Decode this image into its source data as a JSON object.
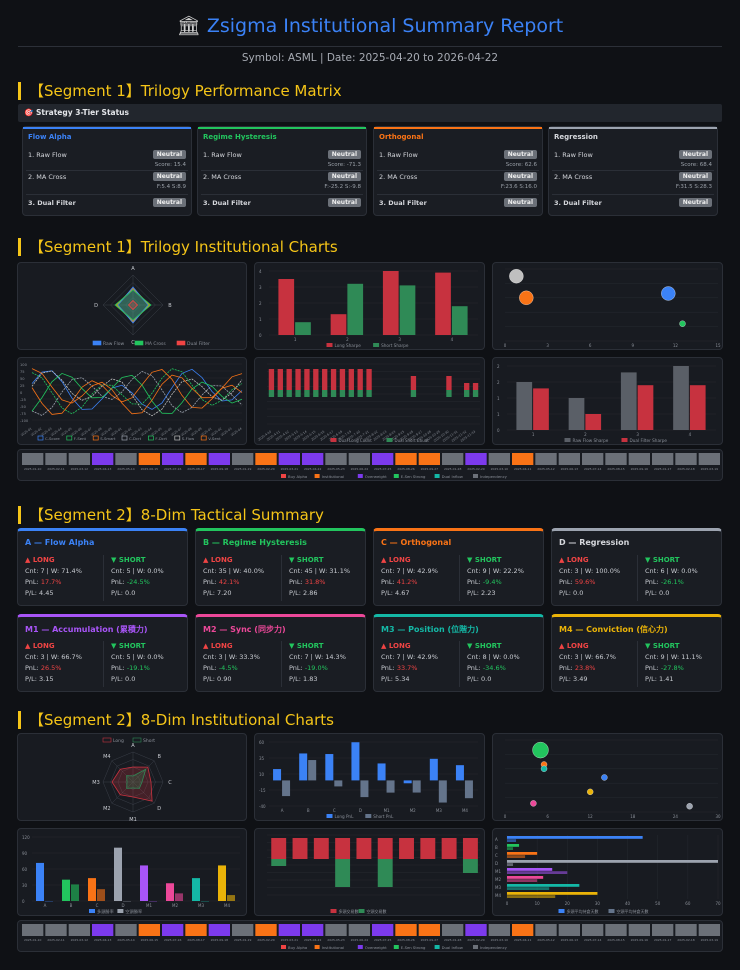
{
  "header": {
    "title": "Zsigma Institutional Summary Report",
    "title_icon": "bank-icon",
    "subtitle": "Symbol: ASML | Date: 2025-04-20 to 2026-04-22"
  },
  "sections": {
    "s1_matrix": "【Segment 1】Trilogy Performance Matrix",
    "s1_charts": "【Segment 1】Trilogy Institutional Charts",
    "s2_summary": "【Segment 2】8-Dim Tactical Summary",
    "s2_charts": "【Segment 2】8-Dim Institutional Charts"
  },
  "strategy_status": {
    "label": "Strategy 3-Tier Status",
    "icon": "target-icon"
  },
  "trilogy": [
    {
      "name": "Flow Alpha",
      "color": "#3b82f6",
      "rows": [
        "1. Raw Flow",
        "2. MA Cross",
        "3. Dual Filter"
      ],
      "badges": [
        "Neutral",
        "Neutral",
        "Neutral"
      ],
      "scores": [
        "Score: 15.4",
        "F:5.4 S:8.9"
      ]
    },
    {
      "name": "Regime Hysteresis",
      "color": "#22c55e",
      "rows": [
        "1. Raw Flow",
        "2. MA Cross",
        "3. Dual Filter"
      ],
      "badges": [
        "Neutral",
        "Neutral",
        "Neutral"
      ],
      "scores": [
        "Score: -71.3",
        "F:-25.2 S:-9.8"
      ]
    },
    {
      "name": "Orthogonal",
      "color": "#f97316",
      "rows": [
        "1. Raw Flow",
        "2. MA Cross",
        "3. Dual Filter"
      ],
      "badges": [
        "Neutral",
        "Neutral",
        "Neutral"
      ],
      "scores": [
        "Score: 62.6",
        "F:23.6 S:16.0"
      ]
    },
    {
      "name": "Regression",
      "color": "#9ca3af",
      "rows": [
        "1. Raw Flow",
        "2. MA Cross",
        "3. Dual Filter"
      ],
      "badges": [
        "Neutral",
        "Neutral",
        "Neutral"
      ],
      "scores": [
        "Score: 68.4",
        "F:31.5 S:28.3"
      ]
    }
  ],
  "dims": [
    {
      "name": "A — Flow Alpha",
      "color": "#3b82f6",
      "long": "LONG",
      "short": "SHORT",
      "l_cnt": "Cnt: 7 | W: 71.4%",
      "l_pnl": "17.7%",
      "l_pl": "P/L: 4.45",
      "s_cnt": "Cnt: 5 | W: 0.0%",
      "s_pnl": "-24.5%",
      "s_pl": "P/L: 0.0"
    },
    {
      "name": "B — Regime Hysteresis",
      "color": "#22c55e",
      "long": "LONG",
      "short": "SHORT",
      "l_cnt": "Cnt: 35 | W: 40.0%",
      "l_pnl": "42.1%",
      "l_pl": "P/L: 7.20",
      "s_cnt": "Cnt: 45 | W: 31.1%",
      "s_pnl": "31.8%",
      "s_pl": "P/L: 2.86"
    },
    {
      "name": "C — Orthogonal",
      "color": "#f97316",
      "long": "LONG",
      "short": "SHORT",
      "l_cnt": "Cnt: 7 | W: 42.9%",
      "l_pnl": "41.2%",
      "l_pl": "P/L: 4.67",
      "s_cnt": "Cnt: 9 | W: 22.2%",
      "s_pnl": "-9.4%",
      "s_pl": "P/L: 2.23"
    },
    {
      "name": "D — Regression",
      "color": "#9ca3af",
      "long": "LONG",
      "short": "SHORT",
      "l_cnt": "Cnt: 3 | W: 100.0%",
      "l_pnl": "59.6%",
      "l_pl": "P/L: 0.0",
      "s_cnt": "Cnt: 6 | W: 0.0%",
      "s_pnl": "-26.1%",
      "s_pl": "P/L: 0.0"
    },
    {
      "name": "M1 — Accumulation (累積力)",
      "color": "#a855f7",
      "long": "LONG",
      "short": "SHORT",
      "l_cnt": "Cnt: 3 | W: 66.7%",
      "l_pnl": "26.5%",
      "l_pl": "P/L: 3.15",
      "s_cnt": "Cnt: 5 | W: 0.0%",
      "s_pnl": "-19.1%",
      "s_pl": "P/L: 0.0"
    },
    {
      "name": "M2 — Sync (同步力)",
      "color": "#ec4899",
      "long": "LONG",
      "short": "SHORT",
      "l_cnt": "Cnt: 3 | W: 33.3%",
      "l_pnl": "-4.5%",
      "l_pl": "P/L: 0.90",
      "s_cnt": "Cnt: 7 | W: 14.3%",
      "s_pnl": "-19.0%",
      "s_pl": "P/L: 1.83"
    },
    {
      "name": "M3 — Position (位階力)",
      "color": "#14b8a6",
      "long": "LONG",
      "short": "SHORT",
      "l_cnt": "Cnt: 7 | W: 42.9%",
      "l_pnl": "33.7%",
      "l_pl": "P/L: 5.34",
      "s_cnt": "Cnt: 8 | W: 0.0%",
      "s_pnl": "-34.6%",
      "s_pl": "P/L: 0.0"
    },
    {
      "name": "M4 — Conviction (信心力)",
      "color": "#eab308",
      "long": "LONG",
      "short": "SHORT",
      "l_cnt": "Cnt: 3 | W: 66.7%",
      "l_pnl": "23.8%",
      "l_pl": "P/L: 3.49",
      "s_cnt": "Cnt: 9 | W: 11.1%",
      "s_pnl": "-27.8%",
      "s_pl": "P/L: 1.41"
    }
  ],
  "chart_data": [
    {
      "id": "s1_radar",
      "type": "radar",
      "axes": [
        "A",
        "B",
        "C",
        "D"
      ],
      "series": [
        {
          "name": "Raw Flow",
          "color": "#3b82f6",
          "values": [
            0.6,
            0.5,
            0.6,
            0.5
          ]
        },
        {
          "name": "MA Cross",
          "color": "#22c55e",
          "values": [
            0.5,
            0.6,
            0.5,
            0.6
          ]
        },
        {
          "name": "Dual Filter",
          "color": "#ef4444",
          "values": [
            0.15,
            0.15,
            0.15,
            0.15
          ]
        }
      ],
      "outline_color": "#f59e0b"
    },
    {
      "id": "s1_bar_sharpe",
      "type": "bar",
      "categories": [
        "1",
        "2",
        "3",
        "4"
      ],
      "ylim": [
        0,
        4
      ],
      "series": [
        {
          "name": "Long Sharpe",
          "color": "#c7323f",
          "values": [
            3.5,
            1.3,
            4.0,
            3.9
          ]
        },
        {
          "name": "Short Sharpe",
          "color": "#2f8a56",
          "values": [
            0.8,
            3.2,
            3.1,
            1.8
          ]
        }
      ]
    },
    {
      "id": "s1_bubble",
      "type": "scatter",
      "xlim": [
        0,
        15
      ],
      "ylim": [
        0,
        5
      ],
      "points": [
        {
          "x": 0.8,
          "y": 4.5,
          "r": 7,
          "color": "#bfbfbf"
        },
        {
          "x": 1.5,
          "y": 3.0,
          "r": 7,
          "color": "#f97316"
        },
        {
          "x": 11.5,
          "y": 3.3,
          "r": 7,
          "color": "#3b82f6"
        },
        {
          "x": 12.5,
          "y": 1.2,
          "r": 3,
          "color": "#22c55e"
        }
      ]
    },
    {
      "id": "s1_lines",
      "type": "line",
      "legend": [
        "C-Score",
        "F-Sent",
        "S-Smart",
        "C-Dcrt",
        "F-Dcrt",
        "S-Flow",
        "V-Sent"
      ],
      "colors": [
        "#3b82f6",
        "#22c55e",
        "#f97316",
        "#9ca3af",
        "#22c55e",
        "#bfbfbf",
        "#f97316"
      ],
      "ylim": [
        -100,
        100
      ]
    },
    {
      "id": "s1_dual",
      "type": "bar",
      "legend": [
        "Dual Long Count",
        "Dual Short Count"
      ],
      "colors": [
        "#c7323f",
        "#2f8a56"
      ],
      "long": [
        3,
        3,
        3,
        3,
        3,
        3,
        3,
        3,
        3,
        3,
        3,
        3,
        0,
        0,
        0,
        0,
        2,
        0,
        0,
        0,
        2,
        0,
        1,
        1
      ],
      "short": [
        1,
        1,
        1,
        1,
        1,
        1,
        1,
        1,
        1,
        1,
        1,
        1,
        0,
        0,
        0,
        0,
        1,
        0,
        0,
        0,
        1,
        0,
        1,
        1
      ]
    },
    {
      "id": "s1_flow",
      "type": "bar",
      "categories": [
        "1",
        "2",
        "3",
        "4"
      ],
      "ylim": [
        0,
        2
      ],
      "series": [
        {
          "name": "Raw Flow Sharpe",
          "color": "#5a5f67",
          "values": [
            1.5,
            1.0,
            1.8,
            2.0
          ]
        },
        {
          "name": "Dual Filter Sharpe",
          "color": "#c7323f",
          "values": [
            1.3,
            0.5,
            1.4,
            1.4
          ]
        }
      ]
    },
    {
      "id": "s1_strip",
      "type": "heatstrip",
      "colors": [
        "#6b7078",
        "#6b7078",
        "#6b7078",
        "#7c3aed",
        "#6b7078",
        "#f97316",
        "#7c3aed",
        "#f97316",
        "#7c3aed",
        "#6b7078",
        "#f97316",
        "#7c3aed",
        "#7c3aed",
        "#6b7078",
        "#6b7078",
        "#7c3aed",
        "#f97316",
        "#f97316",
        "#6b7078",
        "#7c3aed",
        "#6b7078",
        "#f97316",
        "#6b7078",
        "#6b7078",
        "#6b7078",
        "#6b7078",
        "#6b7078",
        "#6b7078",
        "#6b7078",
        "#6b7078"
      ],
      "legend": [
        "Buy Alpha",
        "Institutional",
        "Overweight",
        "E-Sen Strong",
        "Dual Inflow",
        "Independency"
      ]
    },
    {
      "id": "s2_radar",
      "type": "radar",
      "axes": [
        "A",
        "B",
        "C",
        "D",
        "M1",
        "M2",
        "M3",
        "M4"
      ],
      "legend": [
        "Long",
        "Short"
      ],
      "series": [
        {
          "name": "Long",
          "color": "#c7323f",
          "values": [
            0.5,
            0.7,
            0.6,
            0.9,
            0.5,
            0.6,
            0.7,
            0.6
          ]
        },
        {
          "name": "Short",
          "color": "#2f8a56",
          "values": [
            0.2,
            0.6,
            0.3,
            0.3,
            0.2,
            0.3,
            0.2,
            0.3
          ]
        }
      ]
    },
    {
      "id": "s2_pnl",
      "type": "bar",
      "categories": [
        "A",
        "B",
        "C",
        "D",
        "M1",
        "M2",
        "M3",
        "M4"
      ],
      "ylim": [
        -40,
        60
      ],
      "series": [
        {
          "name": "Long PnL",
          "color": "#3b82f6",
          "values": [
            17.7,
            42.1,
            41.2,
            59.6,
            26.5,
            -4.5,
            33.7,
            23.8
          ]
        },
        {
          "name": "Short PnL",
          "color": "#64748b",
          "values": [
            -24.5,
            31.8,
            -9.4,
            -26.1,
            -19.1,
            -19.0,
            -34.6,
            -27.8
          ]
        }
      ]
    },
    {
      "id": "s2_bubble",
      "type": "scatter",
      "xlim": [
        0,
        30
      ],
      "ylim": [
        0,
        5
      ],
      "points": [
        {
          "x": 4,
          "y": 0.6,
          "r": 3,
          "color": "#ec4899"
        },
        {
          "x": 5,
          "y": 4.3,
          "r": 8,
          "color": "#22c55e"
        },
        {
          "x": 5.5,
          "y": 3.3,
          "r": 3,
          "color": "#f97316"
        },
        {
          "x": 5.5,
          "y": 3.0,
          "r": 3,
          "color": "#14b8a6"
        },
        {
          "x": 12,
          "y": 1.4,
          "r": 3,
          "color": "#eab308"
        },
        {
          "x": 14,
          "y": 2.4,
          "r": 3,
          "color": "#3b82f6"
        },
        {
          "x": 26,
          "y": 0.4,
          "r": 3,
          "color": "#9ca3af"
        }
      ]
    },
    {
      "id": "s2_pl",
      "type": "bar",
      "categories": [
        "A",
        "B",
        "C",
        "D",
        "M1",
        "M2",
        "M3",
        "M4"
      ],
      "ylim": [
        0,
        120
      ],
      "series": [
        {
          "name": "多頭勝率",
          "values": [
            71.4,
            40.0,
            42.9,
            100.0,
            66.7,
            33.3,
            42.9,
            66.7
          ]
        },
        {
          "name": "空頭勝率",
          "values": [
            0,
            31.1,
            22.2,
            0,
            0,
            14.3,
            0,
            11.1
          ]
        }
      ],
      "colors": [
        "#3b82f6",
        "#22c55e",
        "#f97316",
        "#9ca3af",
        "#a855f7",
        "#ec4899",
        "#14b8a6",
        "#eab308"
      ]
    },
    {
      "id": "s2_count",
      "type": "bar",
      "legend": [
        "多頭交易數",
        "空頭交易數"
      ],
      "colors": [
        "#c7323f",
        "#2f8a56"
      ],
      "long": [
        3,
        3,
        3,
        3,
        3,
        3,
        3,
        3,
        3,
        3
      ],
      "short": [
        1,
        0,
        0,
        4,
        0,
        4,
        0,
        0,
        0,
        2
      ]
    },
    {
      "id": "s2_hbar",
      "type": "hbar",
      "categories": [
        "A",
        "B",
        "C",
        "D",
        "M1",
        "M2",
        "M3",
        "M4"
      ],
      "legend": [
        "多頭平均持倉天數",
        "空頭平均持倉天數"
      ],
      "colors": [
        "#3b82f6",
        "#22c55e",
        "#f97316",
        "#9ca3af",
        "#a855f7",
        "#ec4899",
        "#14b8a6",
        "#eab308"
      ],
      "long": [
        45,
        4,
        10,
        70,
        15,
        12,
        24,
        30
      ],
      "short": [
        3,
        2,
        6,
        2,
        20,
        10,
        14,
        16
      ]
    },
    {
      "id": "s2_strip",
      "type": "heatstrip",
      "colors": [
        "#6b7078",
        "#6b7078",
        "#6b7078",
        "#7c3aed",
        "#6b7078",
        "#f97316",
        "#7c3aed",
        "#f97316",
        "#7c3aed",
        "#6b7078",
        "#f97316",
        "#7c3aed",
        "#7c3aed",
        "#6b7078",
        "#6b7078",
        "#7c3aed",
        "#f97316",
        "#f97316",
        "#6b7078",
        "#7c3aed",
        "#6b7078",
        "#f97316",
        "#6b7078",
        "#6b7078",
        "#6b7078",
        "#6b7078",
        "#6b7078",
        "#6b7078",
        "#6b7078",
        "#6b7078"
      ],
      "legend": [
        "Buy Alpha",
        "Institutional",
        "Overweight",
        "E-Sen Strong",
        "Dual Inflow",
        "Independency"
      ]
    }
  ]
}
